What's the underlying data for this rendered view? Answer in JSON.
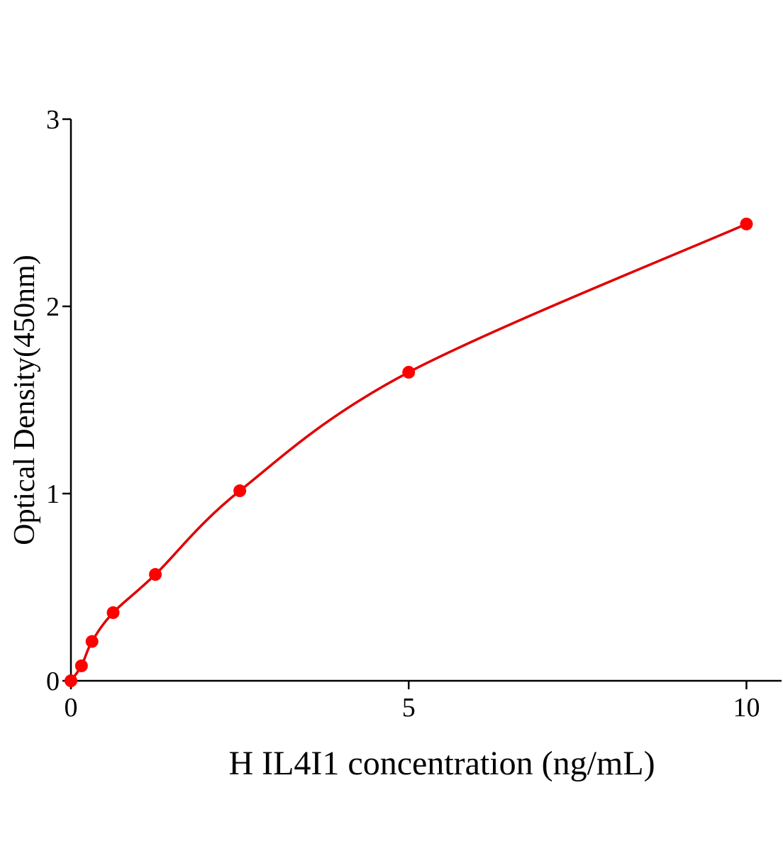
{
  "chart_data": {
    "type": "scatter",
    "x_label": "H IL4I1 concentration (ng/mL)",
    "y_label": "Optical Density(450nm)",
    "x": [
      0,
      0.156,
      0.312,
      0.625,
      1.25,
      2.5,
      5,
      10
    ],
    "series": [
      {
        "color": "#ff0000",
        "values": [
          0,
          0.08,
          0.21,
          0.364,
          0.568,
          1.015,
          1.648,
          2.44
        ]
      }
    ],
    "xlim": [
      0,
      10.52
    ],
    "xticks": [
      0,
      5,
      10
    ],
    "ylim": [
      0,
      3
    ],
    "yticks": [
      0,
      1,
      2,
      3
    ],
    "fit_line": true
  }
}
